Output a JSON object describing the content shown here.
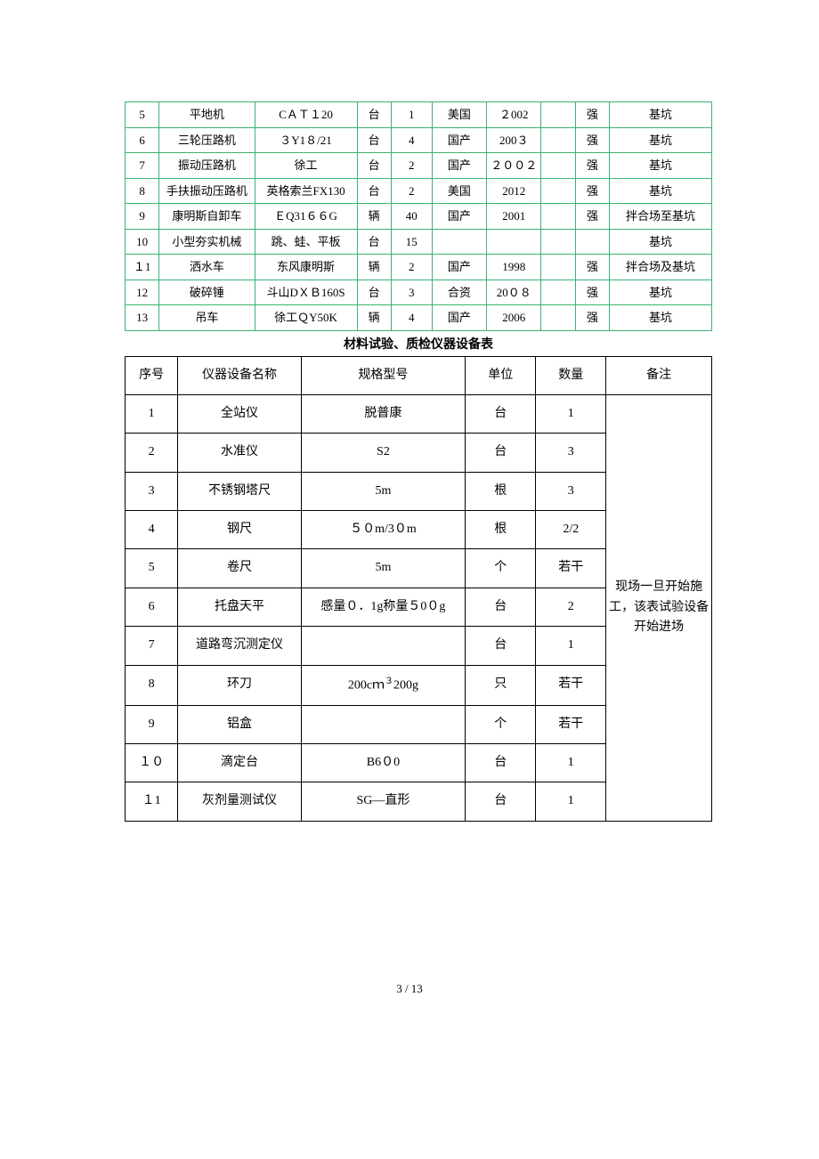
{
  "table1": {
    "colors": {
      "border": "#3cb371"
    },
    "col_widths_pct": [
      5,
      14,
      15,
      5,
      6,
      8,
      8,
      5,
      5,
      15
    ],
    "rows": [
      {
        "no": "5",
        "name": "平地机",
        "model": "CＡＴ１20",
        "unit": "台",
        "qty": "1",
        "origin": "美国",
        "year": "２002",
        "c8": "",
        "c9": "强",
        "loc": "基坑"
      },
      {
        "no": "6",
        "name": "三轮压路机",
        "model": "３Y1８/21",
        "unit": "台",
        "qty": "4",
        "origin": "国产",
        "year": "200３",
        "c8": "",
        "c9": "强",
        "loc": "基坑"
      },
      {
        "no": "7",
        "name": "振动压路机",
        "model": "徐工",
        "unit": "台",
        "qty": "2",
        "origin": "国产",
        "year": "２００２",
        "c8": "",
        "c9": "强",
        "loc": "基坑"
      },
      {
        "no": "8",
        "name": "手扶振动压路机",
        "model": "英格索兰FX130",
        "unit": "台",
        "qty": "2",
        "origin": "美国",
        "year": "2012",
        "c8": "",
        "c9": "强",
        "loc": "基坑"
      },
      {
        "no": "9",
        "name": "康明斯自卸车",
        "model": "ＥQ31６６G",
        "unit": "辆",
        "qty": "40",
        "origin": "国产",
        "year": "2001",
        "c8": "",
        "c9": "强",
        "loc": "拌合场至基坑"
      },
      {
        "no": "10",
        "name": "小型夯实机械",
        "model": "跳、蛙、平板",
        "unit": "台",
        "qty": "15",
        "origin": "",
        "year": "",
        "c8": "",
        "c9": "",
        "loc": "基坑"
      },
      {
        "no": "１1",
        "name": "洒水车",
        "model": "东风康明斯",
        "unit": "辆",
        "qty": "2",
        "origin": "国产",
        "year": "1998",
        "c8": "",
        "c9": "强",
        "loc": "拌合场及基坑"
      },
      {
        "no": "12",
        "name": "破碎锤",
        "model": "斗山DＸＢ160S",
        "unit": "台",
        "qty": "3",
        "origin": "合资",
        "year": "20０８",
        "c8": "",
        "c9": "强",
        "loc": "基坑"
      },
      {
        "no": "13",
        "name": "吊车",
        "model": "徐工ＱY50K",
        "unit": "辆",
        "qty": "4",
        "origin": "国产",
        "year": "2006",
        "c8": "",
        "c9": "强",
        "loc": "基坑"
      }
    ]
  },
  "section_title": "材料试验、质检仪器设备表",
  "table2": {
    "col_widths_pct": [
      9,
      21,
      28,
      12,
      12,
      18
    ],
    "headers": [
      "序号",
      "仪器设备名称",
      "规格型号",
      "单位",
      "数量",
      "备注"
    ],
    "remarks": "现场一旦开始施工，该表试验设备开始进场",
    "rows": [
      {
        "no": "1",
        "name": "全站仪",
        "model": "脱普康",
        "unit": "台",
        "qty": "1"
      },
      {
        "no": "2",
        "name": "水准仪",
        "model": "S2",
        "unit": "台",
        "qty": "3"
      },
      {
        "no": "3",
        "name": "不锈钢塔尺",
        "model": "5m",
        "unit": "根",
        "qty": "3"
      },
      {
        "no": "4",
        "name": "钢尺",
        "model": "５０m/3０m",
        "unit": "根",
        "qty": "2/2"
      },
      {
        "no": "5",
        "name": "卷尺",
        "model": "5m",
        "unit": "个",
        "qty": "若干"
      },
      {
        "no": "6",
        "name": "托盘天平",
        "model": "感量０．1g称量５0０g",
        "unit": "台",
        "qty": "2"
      },
      {
        "no": "7",
        "name": "道路弯沉测定仪",
        "model": "",
        "unit": "台",
        "qty": "1"
      },
      {
        "no": "8",
        "name": "环刀",
        "model_html": "200cｍ<span class=\"sup\">３</span>200g",
        "unit": "只",
        "qty": "若干"
      },
      {
        "no": "9",
        "name": "铝盒",
        "model": "",
        "unit": "个",
        "qty": "若干"
      },
      {
        "no": "１０",
        "name": "滴定台",
        "model": "B6０0",
        "unit": "台",
        "qty": "1"
      },
      {
        "no": "１1",
        "name": "灰剂量测试仪",
        "model": "SG—直形",
        "unit": "台",
        "qty": "1"
      }
    ]
  },
  "footer": "3 / 13"
}
